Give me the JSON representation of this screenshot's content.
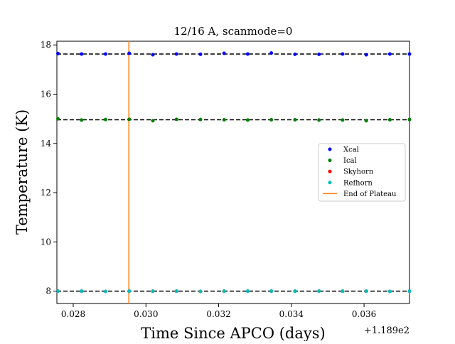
{
  "chart_data": {
    "type": "scatter",
    "title": "12/16 A, scanmode=0",
    "xlabel": "Time Since APCO (days)",
    "ylabel": "Temperature (K)",
    "x_offset_label": "+1.189e2",
    "xlim": [
      0.02755,
      0.03725
    ],
    "ylim": [
      7.5,
      18.15
    ],
    "xticks": [
      0.028,
      0.03,
      0.032,
      0.034,
      0.036
    ],
    "xtick_labels": [
      "0.028",
      "0.030",
      "0.032",
      "0.034",
      "0.036"
    ],
    "yticks": [
      8,
      10,
      12,
      14,
      16,
      18
    ],
    "ytick_labels": [
      "8",
      "10",
      "12",
      "14",
      "16",
      "18"
    ],
    "legend_position": "center-right",
    "x": [
      0.02758,
      0.02823,
      0.02889,
      0.02954,
      0.03019,
      0.03084,
      0.0315,
      0.03215,
      0.0328,
      0.03345,
      0.0341,
      0.03476,
      0.03541,
      0.03606,
      0.03671,
      0.03725
    ],
    "series": [
      {
        "name": "Xcal",
        "color": "#0000ff",
        "values": [
          17.65,
          17.63,
          17.63,
          17.66,
          17.6,
          17.63,
          17.62,
          17.66,
          17.63,
          17.67,
          17.62,
          17.62,
          17.63,
          17.6,
          17.63,
          17.63
        ]
      },
      {
        "name": "Ical",
        "color": "#008000",
        "values": [
          15.0,
          14.95,
          14.97,
          14.98,
          14.92,
          14.98,
          14.97,
          14.96,
          14.95,
          14.96,
          14.96,
          14.95,
          14.95,
          14.92,
          14.96,
          14.97
        ]
      },
      {
        "name": "Skyhorn",
        "color": "#ff0000",
        "values": [
          8.0,
          8.0,
          7.99,
          8.0,
          8.0,
          8.0,
          7.99,
          8.0,
          8.0,
          8.0,
          8.0,
          8.0,
          8.0,
          8.0,
          7.99,
          8.0
        ]
      },
      {
        "name": "Refhorn",
        "color": "#00bfbf",
        "values": [
          8.0,
          8.0,
          7.99,
          8.0,
          8.0,
          8.0,
          7.99,
          8.0,
          8.0,
          8.0,
          8.0,
          8.0,
          8.0,
          8.0,
          7.99,
          8.0
        ]
      }
    ],
    "reference_lines": [
      {
        "orientation": "horizontal",
        "y": 17.63,
        "color": "#000000",
        "style": "dashed"
      },
      {
        "orientation": "horizontal",
        "y": 14.96,
        "color": "#000000",
        "style": "dashed"
      },
      {
        "orientation": "horizontal",
        "y": 8.0,
        "color": "#000000",
        "style": "dashed"
      }
    ],
    "vertical_lines": [
      {
        "name": "End of Plateau",
        "x": 0.02953,
        "color": "#ff7f0e"
      }
    ]
  }
}
